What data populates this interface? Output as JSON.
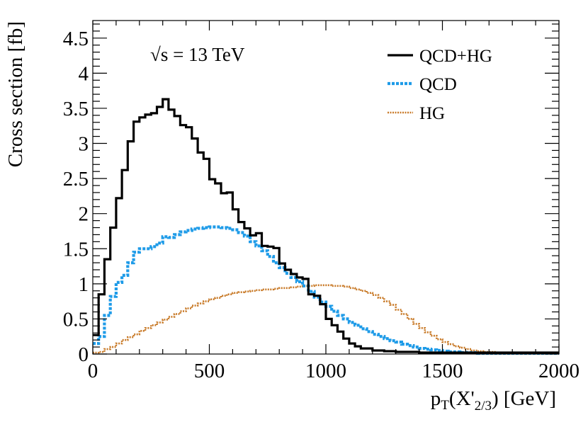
{
  "chart_data": {
    "type": "line",
    "style": "step",
    "title": "",
    "annotation": "√s = 13 TeV",
    "xlabel": "p_T(X'_{2/3}) [GeV]",
    "ylabel": "Cross section [fb]",
    "xlim": [
      0,
      2000
    ],
    "ylim": [
      0,
      4.75
    ],
    "bin_width": 25,
    "x_ticks": [
      0,
      500,
      1000,
      1500,
      2000
    ],
    "y_ticks": [
      0,
      0.5,
      1,
      1.5,
      2,
      2.5,
      3,
      3.5,
      4,
      4.5
    ],
    "legend_position": "top-right",
    "series": [
      {
        "name": "QCD+HG",
        "color": "#000000",
        "dash": "solid",
        "values": [
          0.27,
          0.85,
          1.35,
          1.8,
          2.22,
          2.62,
          3.03,
          3.31,
          3.37,
          3.41,
          3.43,
          3.52,
          3.63,
          3.48,
          3.39,
          3.26,
          3.23,
          3.07,
          2.87,
          2.78,
          2.49,
          2.43,
          2.29,
          2.3,
          2.06,
          1.88,
          1.79,
          1.69,
          1.72,
          1.54,
          1.53,
          1.51,
          1.29,
          1.2,
          1.14,
          1.09,
          1.07,
          0.85,
          0.83,
          0.71,
          0.5,
          0.41,
          0.32,
          0.22,
          0.15,
          0.11,
          0.08,
          0.08,
          0.05,
          0.05,
          0.04,
          0.04,
          0.03,
          0.03,
          0.03,
          0.03,
          0.02,
          0.02,
          0.02,
          0.02,
          0.02,
          0.02,
          0.02,
          0.02,
          0.02,
          0.02,
          0.02,
          0.02,
          0.02,
          0.02,
          0.02,
          0.02,
          0.02,
          0.02,
          0.02,
          0.02,
          0.02,
          0.02,
          0.02,
          0.02
        ]
      },
      {
        "name": "QCD",
        "color": "#1e9be8",
        "dash": "dotted",
        "values": [
          0.15,
          0.25,
          0.55,
          0.82,
          1.02,
          1.12,
          1.3,
          1.45,
          1.5,
          1.5,
          1.53,
          1.58,
          1.67,
          1.66,
          1.7,
          1.74,
          1.76,
          1.78,
          1.79,
          1.8,
          1.81,
          1.81,
          1.8,
          1.79,
          1.77,
          1.73,
          1.68,
          1.6,
          1.54,
          1.47,
          1.39,
          1.3,
          1.23,
          1.15,
          1.09,
          1.03,
          0.97,
          0.89,
          0.81,
          0.74,
          0.68,
          0.61,
          0.55,
          0.5,
          0.45,
          0.41,
          0.36,
          0.32,
          0.28,
          0.25,
          0.22,
          0.19,
          0.17,
          0.14,
          0.12,
          0.1,
          0.08,
          0.07,
          0.06,
          0.05,
          0.04,
          0.03,
          0.03,
          0.02,
          0.02,
          0.02,
          0.01,
          0.01,
          0.01,
          0.01,
          0.01,
          0.01,
          0.01,
          0.01,
          0.01,
          0.01,
          0.01,
          0.01,
          0.01,
          0.01
        ]
      },
      {
        "name": "HG",
        "color": "#c87a28",
        "dash": "dotted",
        "values": [
          0.02,
          0.03,
          0.07,
          0.1,
          0.15,
          0.2,
          0.24,
          0.28,
          0.33,
          0.37,
          0.41,
          0.45,
          0.49,
          0.53,
          0.57,
          0.61,
          0.65,
          0.69,
          0.72,
          0.75,
          0.78,
          0.8,
          0.83,
          0.85,
          0.87,
          0.88,
          0.89,
          0.9,
          0.91,
          0.92,
          0.92,
          0.93,
          0.94,
          0.94,
          0.95,
          0.96,
          0.97,
          0.97,
          0.98,
          0.98,
          0.98,
          0.97,
          0.97,
          0.96,
          0.94,
          0.92,
          0.9,
          0.87,
          0.84,
          0.8,
          0.75,
          0.7,
          0.63,
          0.57,
          0.5,
          0.43,
          0.37,
          0.31,
          0.26,
          0.21,
          0.17,
          0.14,
          0.11,
          0.09,
          0.07,
          0.05,
          0.04,
          0.03,
          0.03,
          0.02,
          0.02,
          0.02,
          0.02,
          0.02,
          0.02,
          0.02,
          0.02,
          0.02,
          0.02,
          0.02
        ]
      }
    ]
  }
}
